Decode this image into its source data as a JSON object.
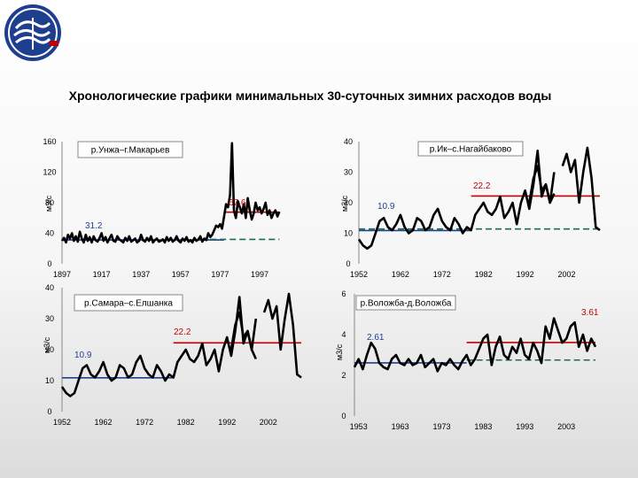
{
  "title": "Хронологические графики минимальных 30-суточных зимних расходов воды",
  "colors": {
    "series": "#000000",
    "mean_before": "#1f3f8f",
    "mean_after": "#c00000",
    "trend_dashed": "#1e6b55",
    "label_before": "#1f3f8f",
    "label_after": "#c00000"
  },
  "chart_data": [
    {
      "type": "line",
      "station": "р.Унжа–г.Макарьев",
      "ylabel": "м3/с",
      "ylim": [
        0,
        160
      ],
      "yticks": [
        "0",
        "40",
        "80",
        "120",
        "160"
      ],
      "xlim": [
        1897,
        2010
      ],
      "xticks": [
        "1897",
        "1917",
        "1937",
        "1957",
        "1977",
        "1997"
      ],
      "grid": false,
      "mean_before": {
        "value": 31.2,
        "label": "31.2",
        "from": 1897,
        "to": 1979
      },
      "mean_after": {
        "value": 67.6,
        "label": "67.6",
        "from": 1979,
        "to": 2007
      },
      "trend": {
        "from": 1972,
        "to": 2007,
        "value": 32
      },
      "segments": [
        {
          "x": [
            1897,
            1898,
            1899,
            1900,
            1901,
            1902,
            1903,
            1904,
            1905,
            1906,
            1907,
            1908,
            1909,
            1910,
            1911,
            1912,
            1913,
            1914,
            1915,
            1916,
            1917,
            1918,
            1919,
            1920,
            1921,
            1922,
            1923,
            1924,
            1925,
            1926,
            1927,
            1928,
            1929,
            1930,
            1931,
            1932,
            1933,
            1934,
            1935,
            1936,
            1937,
            1938,
            1939,
            1940,
            1941,
            1942,
            1943,
            1944,
            1945,
            1946,
            1947,
            1948,
            1949,
            1950,
            1951,
            1952,
            1953,
            1954,
            1955,
            1956,
            1957,
            1958,
            1959,
            1960,
            1961,
            1962,
            1963,
            1964,
            1965,
            1966,
            1967,
            1968,
            1969,
            1970,
            1971,
            1972,
            1973,
            1974,
            1975,
            1976,
            1977,
            1978,
            1979,
            1980,
            1981,
            1982,
            1983,
            1984,
            1985,
            1986,
            1987,
            1988,
            1989,
            1990,
            1991,
            1992,
            1993,
            1994,
            1995,
            1996,
            1997,
            1998,
            1999,
            2000,
            2001,
            2002,
            2003,
            2004,
            2005,
            2006,
            2007
          ],
          "y": [
            30,
            34,
            28,
            38,
            33,
            40,
            30,
            36,
            29,
            42,
            33,
            28,
            38,
            30,
            35,
            28,
            36,
            31,
            29,
            34,
            40,
            30,
            35,
            28,
            33,
            38,
            30,
            29,
            36,
            32,
            30,
            28,
            34,
            30,
            36,
            29,
            31,
            33,
            28,
            30,
            38,
            31,
            29,
            34,
            30,
            36,
            28,
            31,
            33,
            29,
            30,
            32,
            28,
            35,
            30,
            34,
            29,
            31,
            36,
            30,
            28,
            33,
            30,
            35,
            29,
            31,
            28,
            34,
            30,
            32,
            36,
            29,
            33,
            31,
            40,
            35,
            38,
            44,
            50,
            48,
            52,
            46,
            62,
            78,
            74,
            90,
            158,
            70,
            60,
            82,
            74,
            66,
            78,
            60,
            86,
            70,
            58,
            66,
            80,
            70,
            74,
            66,
            72,
            80,
            64,
            70,
            60,
            66,
            70,
            62,
            68
          ]
        }
      ]
    },
    {
      "type": "line",
      "station": "р.Ик–с.Нагайбаково",
      "ylabel": "м3/с",
      "ylim": [
        0,
        40
      ],
      "yticks": [
        "0",
        "10",
        "20",
        "30",
        "40"
      ],
      "xlim": [
        1952,
        2010
      ],
      "xticks": [
        "1952",
        "1962",
        "1972",
        "1982",
        "1992",
        "2002"
      ],
      "grid": false,
      "mean_before": {
        "value": 10.9,
        "label": "10.9",
        "from": 1952,
        "to": 1979
      },
      "mean_after": {
        "value": 22.2,
        "label": "22.2",
        "from": 1979,
        "to": 2010
      },
      "trend": {
        "from": 1952,
        "to": 2010,
        "value": 11.4
      },
      "segments": [
        {
          "x": [
            1952,
            1953,
            1954,
            1955,
            1956,
            1957,
            1958,
            1959,
            1960,
            1961,
            1962,
            1963,
            1964,
            1965,
            1966,
            1967,
            1968,
            1969,
            1970,
            1971,
            1972,
            1973,
            1974,
            1975,
            1976,
            1977,
            1978,
            1979,
            1980,
            1981,
            1982,
            1983,
            1984,
            1985,
            1986,
            1987,
            1988,
            1989,
            1990,
            1991,
            1992,
            1993,
            1994,
            1995,
            1996,
            1997,
            1998,
            1999
          ],
          "y": [
            8,
            6,
            5,
            6,
            10,
            14,
            15,
            12,
            11,
            13,
            16,
            12,
            10,
            11,
            15,
            14,
            11,
            12,
            16,
            18,
            14,
            12,
            11,
            15,
            13,
            10,
            12,
            11,
            16,
            18,
            20,
            17,
            16,
            18,
            22,
            15,
            17,
            20,
            13,
            20,
            24,
            18,
            26,
            37,
            22,
            26,
            20,
            30
          ]
        },
        {
          "x": [
            1993,
            1994,
            1995,
            1996,
            1997,
            1998,
            1999
          ],
          "y": [
            20,
            28,
            32,
            24,
            26,
            20,
            23
          ]
        },
        {
          "x": [
            2001,
            2002,
            2003,
            2004,
            2005,
            2006,
            2007,
            2008,
            2009,
            2010
          ],
          "y": [
            32,
            36,
            30,
            34,
            20,
            30,
            38,
            28,
            12,
            11
          ]
        }
      ]
    },
    {
      "type": "line",
      "station": "р.Самара–с.Елшанка",
      "ylabel": "м3/с",
      "ylim": [
        0,
        40
      ],
      "yticks": [
        "0",
        "10",
        "20",
        "30",
        "40"
      ],
      "xlim": [
        1952,
        2010
      ],
      "xticks": [
        "1952",
        "1962",
        "1972",
        "1982",
        "1992",
        "2002"
      ],
      "grid": false,
      "mean_before": {
        "value": 10.9,
        "label": "10.9",
        "from": 1952,
        "to": 1979
      },
      "mean_after": {
        "value": 22.2,
        "label": "22.2",
        "from": 1979,
        "to": 2010
      },
      "trend": null,
      "segments": [
        {
          "x": [
            1952,
            1953,
            1954,
            1955,
            1956,
            1957,
            1958,
            1959,
            1960,
            1961,
            1962,
            1963,
            1964,
            1965,
            1966,
            1967,
            1968,
            1969,
            1970,
            1971,
            1972,
            1973,
            1974,
            1975,
            1976,
            1977,
            1978,
            1979,
            1980,
            1981,
            1982,
            1983,
            1984,
            1985,
            1986,
            1987,
            1988,
            1989,
            1990,
            1991,
            1992,
            1993,
            1994,
            1995,
            1996,
            1997,
            1998,
            1999
          ],
          "y": [
            8,
            6,
            5,
            6,
            10,
            14,
            15,
            12,
            11,
            13,
            16,
            12,
            10,
            11,
            15,
            14,
            11,
            12,
            16,
            18,
            14,
            12,
            11,
            15,
            13,
            10,
            12,
            11,
            16,
            18,
            20,
            17,
            16,
            18,
            22,
            15,
            17,
            20,
            13,
            20,
            24,
            18,
            26,
            37,
            22,
            26,
            20,
            30
          ]
        },
        {
          "x": [
            1993,
            1994,
            1995,
            1996,
            1997,
            1998,
            1999
          ],
          "y": [
            20,
            28,
            32,
            24,
            26,
            20,
            17
          ]
        },
        {
          "x": [
            2001,
            2002,
            2003,
            2004,
            2005,
            2006,
            2007,
            2008,
            2009,
            2010
          ],
          "y": [
            32,
            36,
            30,
            34,
            20,
            30,
            38,
            28,
            12,
            11
          ]
        }
      ]
    },
    {
      "type": "line",
      "station": "р.Воложба-д.Воложба",
      "ylabel": "м3/с",
      "ylim": [
        0,
        6
      ],
      "yticks": [
        "0",
        "2",
        "4",
        "6"
      ],
      "xlim": [
        1952,
        2010
      ],
      "xticks": [
        "1953",
        "1963",
        "1973",
        "1983",
        "1993",
        "2003"
      ],
      "grid": false,
      "mean_before": {
        "value": 2.61,
        "label": "2.61",
        "from": 1952,
        "to": 1979
      },
      "mean_after": {
        "value": 3.61,
        "label": "3.61",
        "from": 1979,
        "to": 2010
      },
      "trend": {
        "from": 1979,
        "to": 2010,
        "value": 2.75
      },
      "segments": [
        {
          "x": [
            1952,
            1953,
            1954,
            1955,
            1956,
            1957,
            1958,
            1959,
            1960,
            1961,
            1962,
            1963,
            1964,
            1965,
            1966,
            1967,
            1968,
            1969,
            1970,
            1971,
            1972,
            1973,
            1974,
            1975,
            1976,
            1977,
            1978,
            1979,
            1980,
            1981,
            1982,
            1983,
            1984,
            1985,
            1986,
            1987,
            1988,
            1989,
            1990,
            1991,
            1992,
            1993,
            1994,
            1995,
            1996,
            1997,
            1998,
            1999,
            2000,
            2001,
            2002,
            2003,
            2004,
            2005,
            2006,
            2007,
            2008,
            2009,
            2010
          ],
          "y": [
            2.4,
            2.8,
            2.3,
            3.0,
            3.6,
            3.3,
            2.6,
            2.4,
            2.3,
            2.8,
            3.0,
            2.6,
            2.5,
            2.8,
            2.5,
            2.6,
            3.0,
            2.4,
            2.6,
            2.8,
            2.2,
            2.6,
            2.5,
            2.8,
            2.5,
            2.3,
            2.7,
            3.0,
            2.5,
            2.8,
            3.3,
            3.8,
            4.0,
            2.5,
            3.4,
            3.9,
            3.0,
            2.8,
            3.4,
            3.1,
            3.8,
            3.0,
            2.8,
            3.6,
            3.2,
            2.6,
            4.4,
            3.8,
            4.8,
            4.2,
            3.6,
            3.8,
            4.4,
            4.6,
            3.4,
            4.0,
            3.2,
            3.8,
            3.4
          ]
        }
      ]
    }
  ]
}
